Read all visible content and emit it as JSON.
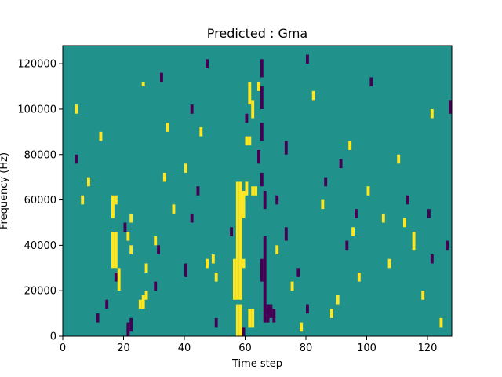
{
  "chart_data": {
    "type": "heatmap",
    "title": "Predicted : Gma",
    "xlabel": "Time step",
    "ylabel": "Frequency (Hz)",
    "xlim": [
      0,
      128
    ],
    "ylim": [
      0,
      128000
    ],
    "xticks": [
      0,
      20,
      40,
      60,
      80,
      100,
      120
    ],
    "yticks": [
      0,
      20000,
      40000,
      60000,
      80000,
      100000,
      120000
    ],
    "xtick_labels": [
      "0",
      "20",
      "40",
      "60",
      "80",
      "100",
      "120"
    ],
    "ytick_labels": [
      "0",
      "20000",
      "40000",
      "60000",
      "80000",
      "100000",
      "120000"
    ],
    "grid": false,
    "colors": {
      "background": "#21918c",
      "high": "#fde725",
      "low": "#440154"
    },
    "description_levels": [
      "low",
      "background",
      "high"
    ],
    "cells": {
      "bin_width_time": 1,
      "bin_height_hz": 2000,
      "high": [
        [
          57,
          0,
          14000
        ],
        [
          58,
          0,
          14000
        ],
        [
          56,
          16000,
          34000
        ],
        [
          57,
          16000,
          68000
        ],
        [
          58,
          16000,
          68000
        ],
        [
          59,
          30000,
          34000
        ],
        [
          61,
          4000,
          12000
        ],
        [
          62,
          4000,
          12000
        ],
        [
          59,
          52000,
          64000
        ],
        [
          60,
          62000,
          68000
        ],
        [
          62,
          62000,
          66000
        ],
        [
          63,
          62000,
          66000
        ],
        [
          60,
          84000,
          88000
        ],
        [
          61,
          84000,
          88000
        ],
        [
          61,
          102000,
          112000
        ],
        [
          62,
          96000,
          104000
        ],
        [
          16,
          30000,
          46000
        ],
        [
          17,
          30000,
          46000
        ],
        [
          16,
          52000,
          62000
        ],
        [
          17,
          58000,
          62000
        ],
        [
          18,
          20000,
          30000
        ],
        [
          25,
          12000,
          16000
        ],
        [
          26,
          12000,
          18000
        ],
        [
          27,
          16000,
          20000
        ],
        [
          27,
          28000,
          32000
        ],
        [
          22,
          36000,
          40000
        ],
        [
          22,
          50000,
          54000
        ],
        [
          21,
          42000,
          46000
        ],
        [
          49,
          32000,
          36000
        ],
        [
          50,
          24000,
          28000
        ],
        [
          47,
          30000,
          34000
        ],
        [
          107,
          30000,
          34000
        ],
        [
          115,
          38000,
          46000
        ],
        [
          112,
          48000,
          52000
        ],
        [
          88,
          8000,
          12000
        ],
        [
          90,
          14000,
          18000
        ],
        [
          97,
          24000,
          28000
        ],
        [
          95,
          44000,
          48000
        ],
        [
          26,
          110000,
          112000
        ],
        [
          34,
          90000,
          94000
        ],
        [
          45,
          88000,
          92000
        ],
        [
          64,
          108000,
          112000
        ],
        [
          82,
          104000,
          108000
        ],
        [
          94,
          82000,
          86000
        ],
        [
          110,
          76000,
          80000
        ],
        [
          121,
          96000,
          100000
        ],
        [
          6,
          58000,
          62000
        ],
        [
          8,
          66000,
          70000
        ],
        [
          4,
          98000,
          102000
        ],
        [
          12,
          86000,
          90000
        ],
        [
          30,
          40000,
          44000
        ],
        [
          33,
          68000,
          72000
        ],
        [
          36,
          54000,
          58000
        ],
        [
          40,
          72000,
          76000
        ],
        [
          70,
          36000,
          40000
        ],
        [
          75,
          20000,
          24000
        ],
        [
          78,
          2000,
          6000
        ],
        [
          85,
          56000,
          60000
        ],
        [
          100,
          62000,
          66000
        ],
        [
          105,
          50000,
          54000
        ],
        [
          118,
          16000,
          20000
        ],
        [
          124,
          4000,
          8000
        ]
      ],
      "low": [
        [
          66,
          6000,
          44000
        ],
        [
          67,
          6000,
          14000
        ],
        [
          68,
          8000,
          14000
        ],
        [
          69,
          6000,
          12000
        ],
        [
          65,
          24000,
          34000
        ],
        [
          66,
          56000,
          64000
        ],
        [
          65,
          66000,
          72000
        ],
        [
          65,
          86000,
          94000
        ],
        [
          65,
          100000,
          110000
        ],
        [
          65,
          114000,
          122000
        ],
        [
          64,
          76000,
          82000
        ],
        [
          73,
          42000,
          48000
        ],
        [
          73,
          80000,
          86000
        ],
        [
          20,
          46000,
          50000
        ],
        [
          21,
          0,
          6000
        ],
        [
          22,
          2000,
          8000
        ],
        [
          30,
          20000,
          24000
        ],
        [
          31,
          36000,
          40000
        ],
        [
          40,
          26000,
          32000
        ],
        [
          42,
          50000,
          54000
        ],
        [
          44,
          62000,
          66000
        ],
        [
          50,
          4000,
          8000
        ],
        [
          11,
          6000,
          10000
        ],
        [
          14,
          12000,
          16000
        ],
        [
          17,
          24000,
          28000
        ],
        [
          4,
          76000,
          80000
        ],
        [
          32,
          112000,
          116000
        ],
        [
          42,
          98000,
          102000
        ],
        [
          47,
          118000,
          122000
        ],
        [
          80,
          120000,
          124000
        ],
        [
          93,
          38000,
          42000
        ],
        [
          96,
          52000,
          56000
        ],
        [
          101,
          110000,
          114000
        ],
        [
          113,
          58000,
          62000
        ],
        [
          120,
          52000,
          56000
        ],
        [
          121,
          32000,
          36000
        ],
        [
          126,
          38000,
          42000
        ],
        [
          127,
          98000,
          104000
        ],
        [
          55,
          44000,
          48000
        ],
        [
          59,
          0,
          4000
        ],
        [
          60,
          94000,
          98000
        ],
        [
          70,
          58000,
          62000
        ],
        [
          77,
          26000,
          30000
        ],
        [
          80,
          10000,
          14000
        ],
        [
          86,
          66000,
          70000
        ],
        [
          91,
          74000,
          78000
        ]
      ]
    }
  }
}
